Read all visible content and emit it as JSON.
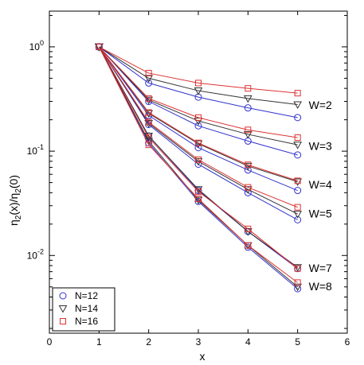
{
  "chart_data": {
    "type": "scatter",
    "title": "",
    "xlabel": "x",
    "ylabel": "η₂(x)/η₂(0)",
    "ylabel_parts": {
      "base": "η",
      "sub": "2",
      "rest": "(x)/η",
      "sub2": "2",
      "tail": "(0)"
    },
    "x_scale": "linear",
    "y_scale": "log",
    "xlim": [
      0,
      6
    ],
    "ylim": [
      0.0018,
      2.2
    ],
    "x_ticks": [
      0,
      1,
      2,
      3,
      4,
      5,
      6
    ],
    "x_tick_labels": [
      "0",
      "1",
      "2",
      "3",
      "4",
      "5",
      "6"
    ],
    "y_ticks": [
      1,
      0.1,
      0.01
    ],
    "y_tick_labels": [
      {
        "base": "10",
        "exp": "0"
      },
      {
        "base": "10",
        "exp": "-1"
      },
      {
        "base": "10",
        "exp": "-2"
      }
    ],
    "grid": false,
    "legend_position": "bottom-left",
    "legend": [
      {
        "label": "N=12",
        "marker": "circle",
        "color": "#3333cc"
      },
      {
        "label": "N=14",
        "marker": "triangle-down",
        "color": "#333333"
      },
      {
        "label": "N=16",
        "marker": "square",
        "color": "#dd3333"
      }
    ],
    "x": [
      1,
      2,
      3,
      4,
      5
    ],
    "groups": [
      {
        "label": "W=2",
        "series": [
          {
            "name": "N=12",
            "y": [
              1,
              0.45,
              0.33,
              0.26,
              0.21
            ]
          },
          {
            "name": "N=14",
            "y": [
              1,
              0.5,
              0.38,
              0.32,
              0.28
            ]
          },
          {
            "name": "N=16",
            "y": [
              1,
              0.56,
              0.45,
              0.4,
              0.36
            ]
          }
        ]
      },
      {
        "label": "W=3",
        "series": [
          {
            "name": "N=12",
            "y": [
              1,
              0.3,
              0.175,
              0.125,
              0.092
            ]
          },
          {
            "name": "N=14",
            "y": [
              1,
              0.31,
              0.195,
              0.145,
              0.115
            ]
          },
          {
            "name": "N=16",
            "y": [
              1,
              0.32,
              0.21,
              0.16,
              0.135
            ]
          }
        ]
      },
      {
        "label": "W=4",
        "series": [
          {
            "name": "N=12",
            "y": [
              1,
              0.22,
              0.108,
              0.066,
              0.042
            ]
          },
          {
            "name": "N=14",
            "y": [
              1,
              0.23,
              0.118,
              0.072,
              0.051
            ]
          },
          {
            "name": "N=16",
            "y": [
              1,
              0.235,
              0.12,
              0.074,
              0.052
            ]
          }
        ]
      },
      {
        "label": "W=5",
        "series": [
          {
            "name": "N=12",
            "y": [
              1,
              0.18,
              0.075,
              0.04,
              0.022
            ]
          },
          {
            "name": "N=14",
            "y": [
              1,
              0.185,
              0.08,
              0.043,
              0.025
            ]
          },
          {
            "name": "N=16",
            "y": [
              1,
              0.19,
              0.083,
              0.045,
              0.029
            ]
          }
        ]
      },
      {
        "label": "W=7",
        "series": [
          {
            "name": "N=12",
            "y": [
              1,
              0.14,
              0.042,
              0.017,
              0.0075
            ]
          },
          {
            "name": "N=14",
            "y": [
              1,
              0.14,
              0.043,
              0.017,
              0.0077
            ]
          },
          {
            "name": "N=16",
            "y": [
              1,
              0.135,
              0.041,
              0.018,
              0.0075
            ]
          }
        ]
      },
      {
        "label": "W=8",
        "series": [
          {
            "name": "N=12",
            "y": [
              1,
              0.12,
              0.033,
              0.012,
              0.0048
            ]
          },
          {
            "name": "N=14",
            "y": [
              1,
              0.125,
              0.034,
              0.0125,
              0.005
            ]
          },
          {
            "name": "N=16",
            "y": [
              1,
              0.115,
              0.035,
              0.0125,
              0.0055
            ]
          }
        ]
      }
    ]
  }
}
